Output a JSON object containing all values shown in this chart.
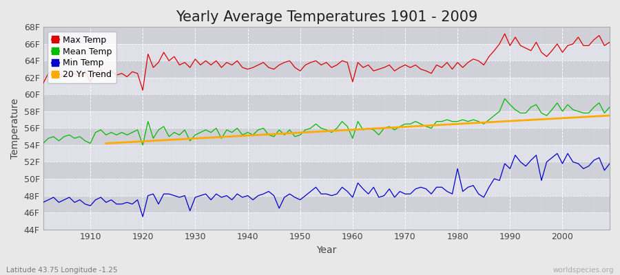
{
  "title": "Yearly Average Temperatures 1901 - 2009",
  "xlabel": "Year",
  "ylabel": "Temperature",
  "years": [
    1901,
    1902,
    1903,
    1904,
    1905,
    1906,
    1907,
    1908,
    1909,
    1910,
    1911,
    1912,
    1913,
    1914,
    1915,
    1916,
    1917,
    1918,
    1919,
    1920,
    1921,
    1922,
    1923,
    1924,
    1925,
    1926,
    1927,
    1928,
    1929,
    1930,
    1931,
    1932,
    1933,
    1934,
    1935,
    1936,
    1937,
    1938,
    1939,
    1940,
    1941,
    1942,
    1943,
    1944,
    1945,
    1946,
    1947,
    1948,
    1949,
    1950,
    1951,
    1952,
    1953,
    1954,
    1955,
    1956,
    1957,
    1958,
    1959,
    1960,
    1961,
    1962,
    1963,
    1964,
    1965,
    1966,
    1967,
    1968,
    1969,
    1970,
    1971,
    1972,
    1973,
    1974,
    1975,
    1976,
    1977,
    1978,
    1979,
    1980,
    1981,
    1982,
    1983,
    1984,
    1985,
    1986,
    1987,
    1988,
    1989,
    1990,
    1991,
    1992,
    1993,
    1994,
    1995,
    1996,
    1997,
    1998,
    1999,
    2000,
    2001,
    2002,
    2003,
    2004,
    2005,
    2006,
    2007,
    2008,
    2009
  ],
  "max_temp": [
    61.3,
    62.5,
    62.8,
    62.0,
    62.3,
    62.2,
    62.5,
    62.1,
    62.8,
    61.5,
    62.6,
    62.9,
    62.4,
    62.8,
    62.3,
    62.5,
    62.1,
    62.7,
    62.5,
    60.5,
    64.8,
    63.2,
    63.8,
    65.0,
    64.0,
    64.5,
    63.5,
    63.8,
    63.2,
    64.2,
    63.5,
    64.0,
    63.5,
    64.0,
    63.2,
    63.8,
    63.5,
    64.0,
    63.2,
    63.0,
    63.2,
    63.5,
    63.8,
    63.2,
    63.0,
    63.5,
    63.8,
    64.0,
    63.2,
    62.8,
    63.5,
    63.8,
    64.0,
    63.5,
    63.8,
    63.2,
    63.5,
    64.0,
    63.8,
    61.5,
    63.8,
    63.2,
    63.5,
    62.8,
    63.0,
    63.2,
    63.5,
    62.8,
    63.2,
    63.5,
    63.2,
    63.5,
    63.0,
    62.8,
    62.5,
    63.5,
    63.2,
    63.8,
    63.0,
    63.8,
    63.2,
    63.8,
    64.2,
    64.0,
    63.5,
    64.5,
    65.2,
    66.0,
    67.2,
    65.8,
    66.8,
    65.8,
    65.5,
    65.2,
    66.2,
    65.0,
    64.5,
    65.2,
    66.0,
    65.0,
    65.8,
    66.0,
    66.8,
    65.8,
    65.8,
    66.5,
    67.0,
    65.8,
    66.2
  ],
  "mean_temp": [
    54.2,
    54.8,
    55.0,
    54.5,
    55.0,
    55.2,
    54.8,
    55.0,
    54.5,
    54.2,
    55.5,
    55.8,
    55.2,
    55.5,
    55.2,
    55.5,
    55.2,
    55.5,
    55.8,
    54.0,
    56.8,
    54.8,
    55.8,
    56.2,
    55.0,
    55.5,
    55.2,
    55.8,
    54.5,
    55.2,
    55.5,
    55.8,
    55.5,
    56.0,
    54.8,
    55.8,
    55.5,
    56.0,
    55.2,
    55.5,
    55.2,
    55.8,
    56.0,
    55.2,
    55.0,
    55.8,
    55.2,
    55.8,
    55.0,
    55.2,
    55.8,
    56.0,
    56.5,
    56.0,
    55.8,
    55.5,
    56.0,
    56.8,
    56.2,
    54.8,
    56.8,
    55.8,
    56.0,
    55.8,
    55.2,
    56.0,
    56.2,
    55.8,
    56.2,
    56.5,
    56.5,
    56.8,
    56.5,
    56.2,
    56.0,
    56.8,
    56.8,
    57.0,
    56.8,
    56.8,
    57.0,
    56.8,
    57.0,
    56.8,
    56.5,
    57.0,
    57.5,
    58.0,
    59.5,
    58.8,
    58.2,
    57.8,
    57.8,
    58.5,
    58.8,
    57.8,
    57.5,
    58.2,
    59.0,
    58.0,
    58.8,
    58.2,
    58.0,
    57.8,
    57.8,
    58.5,
    59.0,
    57.8,
    58.5
  ],
  "min_temp": [
    47.2,
    47.5,
    47.8,
    47.2,
    47.5,
    47.8,
    47.2,
    47.5,
    47.0,
    46.8,
    47.5,
    47.8,
    47.2,
    47.5,
    47.0,
    47.0,
    47.2,
    47.0,
    47.5,
    45.5,
    48.0,
    48.2,
    47.0,
    48.2,
    48.2,
    48.0,
    47.8,
    48.0,
    46.2,
    47.8,
    48.0,
    48.2,
    47.5,
    48.2,
    47.8,
    48.0,
    47.5,
    48.2,
    47.8,
    48.0,
    47.5,
    48.0,
    48.2,
    48.5,
    48.0,
    46.5,
    47.8,
    48.2,
    47.8,
    47.5,
    48.0,
    48.5,
    49.0,
    48.2,
    48.2,
    48.0,
    48.2,
    49.0,
    48.5,
    47.8,
    49.5,
    48.8,
    48.2,
    49.0,
    47.8,
    48.0,
    48.8,
    47.8,
    48.5,
    48.2,
    48.2,
    48.8,
    49.0,
    48.8,
    48.2,
    49.0,
    49.0,
    48.5,
    48.2,
    51.2,
    48.5,
    49.0,
    49.2,
    48.2,
    47.8,
    49.0,
    50.0,
    49.8,
    51.8,
    51.2,
    52.8,
    52.0,
    51.5,
    52.2,
    52.8,
    49.8,
    52.0,
    52.5,
    53.0,
    51.8,
    53.0,
    52.0,
    51.8,
    51.2,
    51.5,
    52.2,
    52.5,
    51.0,
    51.8
  ],
  "trend_years": [
    1913,
    2009
  ],
  "trend_vals": [
    54.2,
    57.5
  ],
  "bg_color": "#e8e8e8",
  "plot_bg_color_light": "#e0e0e8",
  "plot_bg_color_dark": "#d0d0d8",
  "grid_color": "#ffffff",
  "max_color": "#dd0000",
  "mean_color": "#00bb00",
  "min_color": "#0000cc",
  "trend_color": "#ffaa00",
  "ylim_min": 44,
  "ylim_max": 68,
  "yticks": [
    44,
    46,
    48,
    50,
    52,
    54,
    56,
    58,
    60,
    62,
    64,
    66,
    68
  ],
  "xlim_min": 1901,
  "xlim_max": 2009,
  "xticks": [
    1910,
    1920,
    1930,
    1940,
    1950,
    1960,
    1970,
    1980,
    1990,
    2000
  ],
  "title_fontsize": 15,
  "axis_label_fontsize": 10,
  "tick_fontsize": 9,
  "legend_fontsize": 9,
  "footer_left": "Latitude 43.75 Longitude -1.25",
  "footer_right": "worldspecies.org"
}
